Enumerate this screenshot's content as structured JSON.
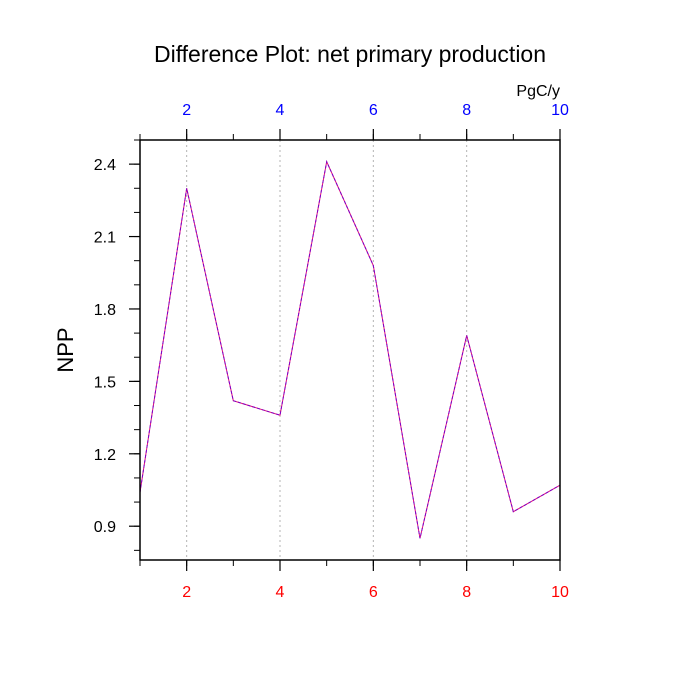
{
  "chart_data": {
    "type": "line",
    "title": "Difference Plot: net primary production",
    "units": "PgC/y",
    "ylabel": "NPP",
    "xlabel": "",
    "x": [
      1,
      2,
      3,
      4,
      5,
      6,
      7,
      8,
      9,
      10
    ],
    "series": [
      {
        "values": [
          1.04,
          2.3,
          1.42,
          1.36,
          2.41,
          1.98,
          0.85,
          1.69,
          0.96,
          1.07
        ],
        "color": "#7b00c8",
        "style": "dashed"
      }
    ],
    "xlim": [
      1,
      10
    ],
    "ylim": [
      0.76,
      2.5
    ],
    "xticks_major": [
      2,
      4,
      6,
      8,
      10
    ],
    "xtick_labels": [
      "2",
      "4",
      "6",
      "8",
      "10"
    ],
    "xticks_minor": [
      1,
      2,
      3,
      4,
      5,
      6,
      7,
      8,
      9,
      10
    ],
    "yticks_major": [
      0.9,
      1.2,
      1.5,
      1.8,
      2.1,
      2.4
    ],
    "ytick_labels": [
      "0.9",
      "1.2",
      "1.5",
      "1.8",
      "2.1",
      "2.4"
    ],
    "yticks_minor": [
      0.8,
      0.9,
      1.0,
      1.1,
      1.2,
      1.3,
      1.4,
      1.5,
      1.6,
      1.7,
      1.8,
      1.9,
      2.0,
      2.1,
      2.2,
      2.3,
      2.4,
      2.5
    ],
    "bottom_tick_color": "#ff0000",
    "top_tick_color": "#0000ff",
    "grid": "vertical dashed at major x ticks"
  }
}
